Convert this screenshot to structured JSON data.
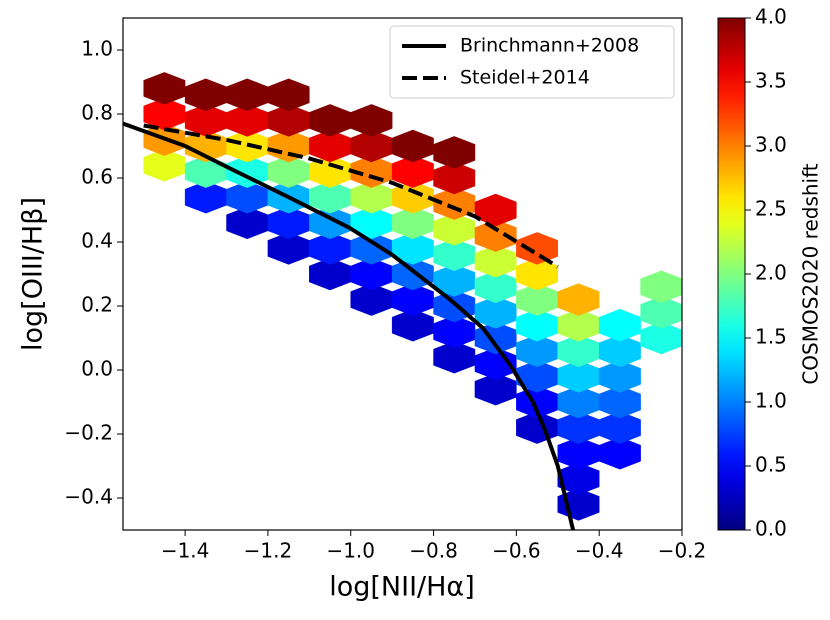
{
  "chart_data": {
    "type": "hexbin",
    "xlabel": "log[NII/Hα]",
    "ylabel": "log[OIII/Hβ]",
    "xlim": [
      -1.55,
      -0.2
    ],
    "ylim": [
      -0.5,
      1.1
    ],
    "xticks": [
      {
        "value": -1.4,
        "label": "−1.4"
      },
      {
        "value": -1.2,
        "label": "−1.2"
      },
      {
        "value": -1.0,
        "label": "−1.0"
      },
      {
        "value": -0.8,
        "label": "−0.8"
      },
      {
        "value": -0.6,
        "label": "−0.6"
      },
      {
        "value": -0.4,
        "label": "−0.4"
      },
      {
        "value": -0.2,
        "label": "−0.2"
      }
    ],
    "yticks": [
      {
        "value": -0.4,
        "label": "−0.4"
      },
      {
        "value": -0.2,
        "label": "−0.2"
      },
      {
        "value": 0.0,
        "label": "0.0"
      },
      {
        "value": 0.2,
        "label": "0.2"
      },
      {
        "value": 0.4,
        "label": "0.4"
      },
      {
        "value": 0.6,
        "label": "0.6"
      },
      {
        "value": 0.8,
        "label": "0.8"
      },
      {
        "value": 1.0,
        "label": "1.0"
      }
    ],
    "colorbar": {
      "label": "COSMOS2020 redshift",
      "colormap": "jet",
      "clim": [
        0,
        4
      ],
      "ticks": [
        {
          "value": 0,
          "label": "0.0"
        },
        {
          "value": 0.5,
          "label": "0.5"
        },
        {
          "value": 1,
          "label": "1.0"
        },
        {
          "value": 1.5,
          "label": "1.5"
        },
        {
          "value": 2,
          "label": "2.0"
        },
        {
          "value": 2.5,
          "label": "2.5"
        },
        {
          "value": 3,
          "label": "3.0"
        },
        {
          "value": 3.5,
          "label": "3.5"
        },
        {
          "value": 4,
          "label": "4.0"
        }
      ]
    },
    "legend": "upper right",
    "hexbins": [
      {
        "x": -1.45,
        "y": [
          0.64,
          0.72,
          0.8,
          0.88
        ],
        "c": [
          2.4,
          2.9,
          3.5,
          4.0
        ]
      },
      {
        "x": -1.35,
        "y": [
          0.54,
          0.62,
          0.7,
          0.78,
          0.86
        ],
        "c": [
          0.6,
          1.8,
          2.8,
          3.6,
          4.0
        ]
      },
      {
        "x": -1.25,
        "y": [
          0.46,
          0.54,
          0.62,
          0.7,
          0.78,
          0.86
        ],
        "c": [
          0.3,
          0.8,
          1.6,
          2.6,
          3.6,
          4.0
        ]
      },
      {
        "x": -1.15,
        "y": [
          0.38,
          0.46,
          0.54,
          0.62,
          0.7,
          0.78,
          0.86
        ],
        "c": [
          0.3,
          0.6,
          1.2,
          2.0,
          2.9,
          3.8,
          4.0
        ]
      },
      {
        "x": -1.05,
        "y": [
          0.3,
          0.38,
          0.46,
          0.54,
          0.62,
          0.7,
          0.78
        ],
        "c": [
          0.3,
          0.6,
          1.1,
          1.8,
          2.6,
          3.6,
          4.0
        ]
      },
      {
        "x": -0.95,
        "y": [
          0.22,
          0.3,
          0.38,
          0.46,
          0.54,
          0.62,
          0.7,
          0.78
        ],
        "c": [
          0.3,
          0.5,
          0.9,
          1.5,
          2.2,
          3.0,
          3.8,
          4.0
        ]
      },
      {
        "x": -0.85,
        "y": [
          0.14,
          0.22,
          0.3,
          0.38,
          0.46,
          0.54,
          0.62,
          0.7
        ],
        "c": [
          0.3,
          0.5,
          0.9,
          1.4,
          2.0,
          2.7,
          3.5,
          4.0
        ]
      },
      {
        "x": -0.75,
        "y": [
          0.04,
          0.12,
          0.2,
          0.28,
          0.36,
          0.44,
          0.52,
          0.6,
          0.68
        ],
        "c": [
          0.3,
          0.5,
          0.8,
          1.2,
          1.7,
          2.3,
          3.0,
          3.7,
          4.0
        ]
      },
      {
        "x": -0.65,
        "y": [
          -0.06,
          0.02,
          0.1,
          0.18,
          0.26,
          0.34,
          0.42,
          0.5
        ],
        "c": [
          0.3,
          0.5,
          0.8,
          1.2,
          1.7,
          2.3,
          3.0,
          3.6
        ]
      },
      {
        "x": -0.55,
        "y": [
          -0.18,
          -0.1,
          -0.02,
          0.06,
          0.14,
          0.22,
          0.3,
          0.38
        ],
        "c": [
          0.3,
          0.5,
          0.8,
          1.1,
          1.5,
          2.0,
          2.6,
          3.2
        ]
      },
      {
        "x": -0.45,
        "y": [
          -0.42,
          -0.34,
          -0.26,
          -0.18,
          -0.1,
          -0.02,
          0.06,
          0.14,
          0.22
        ],
        "c": [
          0.3,
          0.4,
          0.5,
          0.7,
          1.0,
          1.3,
          1.7,
          2.2,
          2.8
        ]
      },
      {
        "x": -0.35,
        "y": [
          -0.26,
          -0.18,
          -0.1,
          -0.02,
          0.06,
          0.14
        ],
        "c": [
          0.5,
          0.7,
          0.9,
          1.1,
          1.3,
          1.5
        ]
      },
      {
        "x": -0.25,
        "y": [
          0.1,
          0.18,
          0.26
        ],
        "c": [
          1.6,
          1.8,
          2.0
        ]
      }
    ],
    "series": [
      {
        "name": "Brinchmann+2008",
        "color": "#000000",
        "dash": "solid",
        "x": [
          -1.55,
          -1.4,
          -1.287,
          -1.15,
          -1.004,
          -0.9,
          -0.76,
          -0.68,
          -0.615,
          -0.56,
          -0.53,
          -0.5,
          -0.463
        ],
        "y": [
          0.77,
          0.7,
          0.627,
          0.54,
          0.445,
          0.36,
          0.22,
          0.13,
          0.016,
          -0.1,
          -0.19,
          -0.3,
          -0.5
        ]
      },
      {
        "name": "Steidel+2014",
        "color": "#000000",
        "dash": "dashed",
        "x": [
          -1.5,
          -1.3,
          -1.1,
          -0.9,
          -0.7,
          -0.5
        ],
        "y": [
          0.764,
          0.719,
          0.661,
          0.585,
          0.48,
          0.323
        ]
      }
    ]
  }
}
